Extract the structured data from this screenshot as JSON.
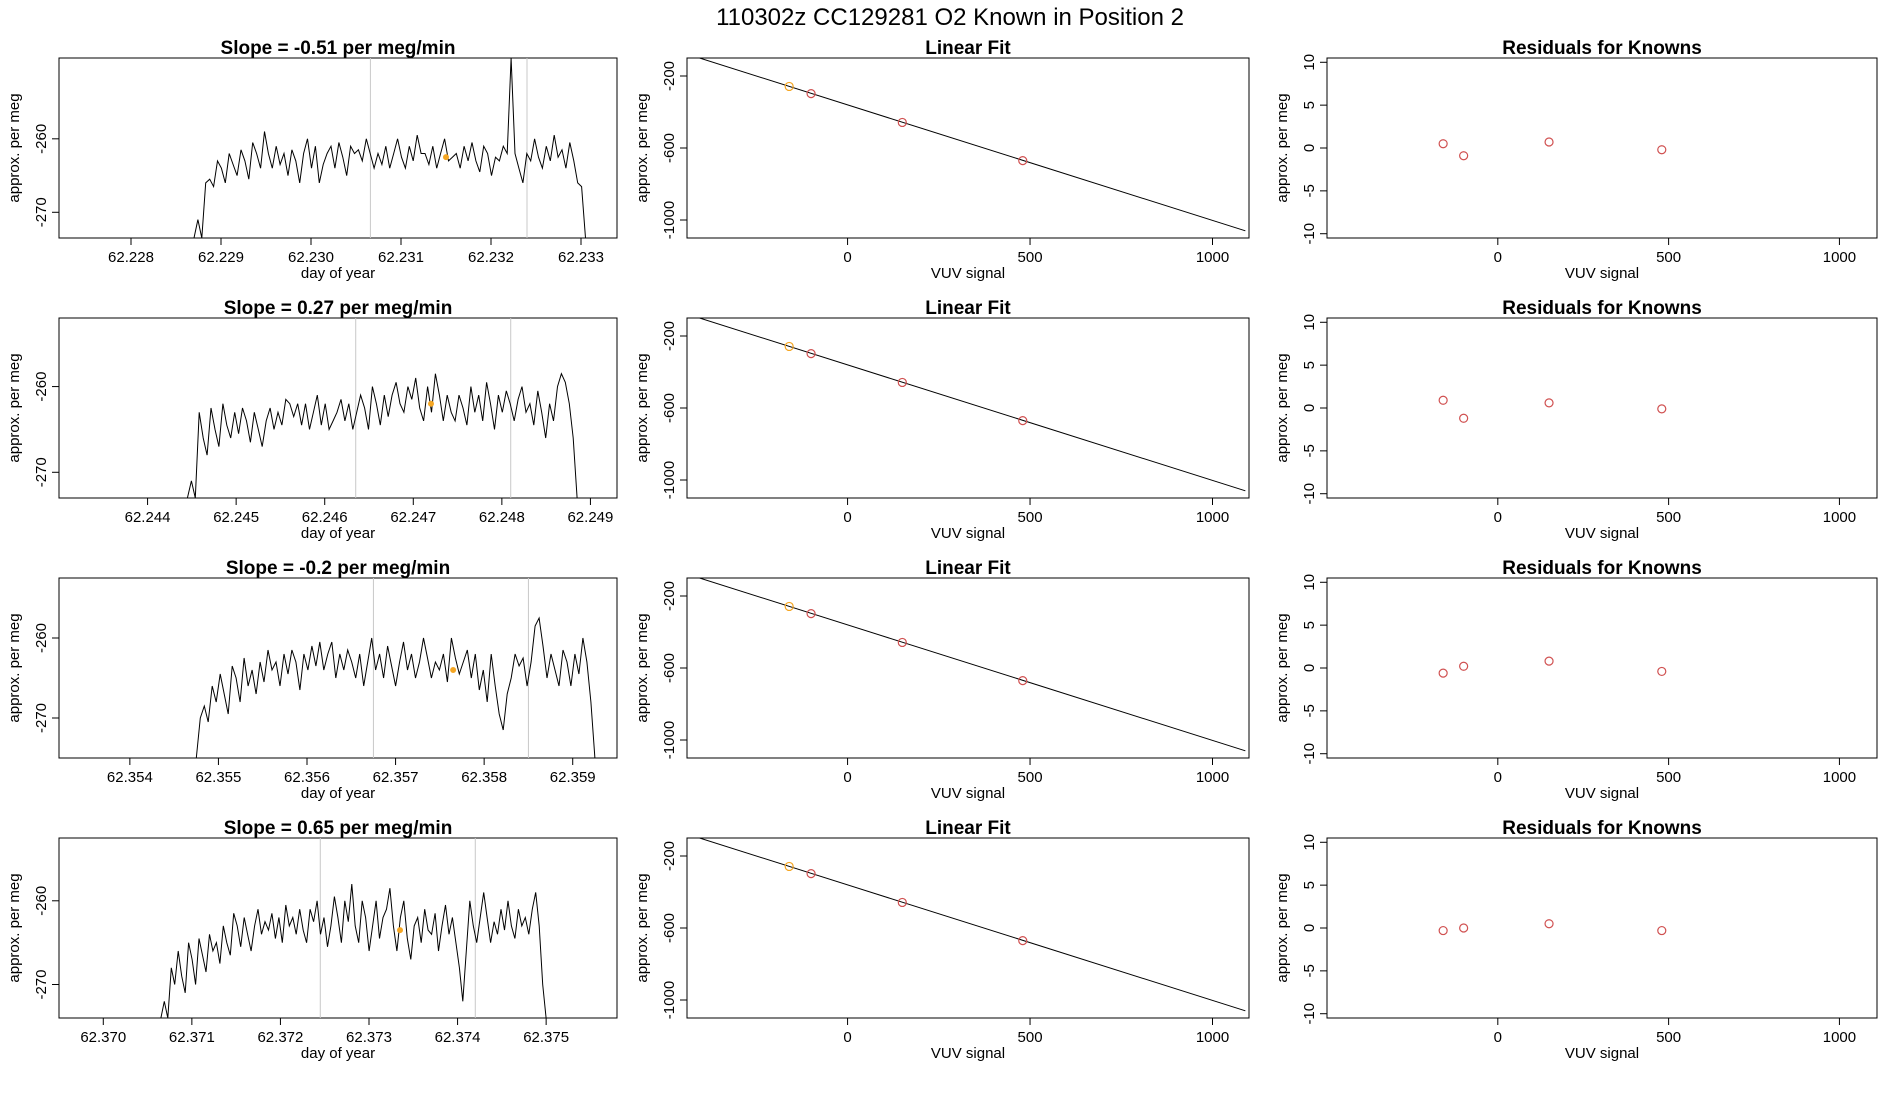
{
  "figure": {
    "title": "110302z      CC129281    O2 Known in Position  2"
  },
  "chart_data": [
    {
      "type": "line",
      "panel": "timeseries",
      "row": 1,
      "title": "Slope =  -0.51  per meg/min",
      "xlabel": "day of year",
      "ylabel": "approx. per meg",
      "xlim": [
        62.2272,
        62.2334
      ],
      "ylim": [
        -273.5,
        -249
      ],
      "xticks": [
        "62.228",
        "62.229",
        "62.230",
        "62.231",
        "62.232",
        "62.233"
      ],
      "yticks": [
        "-270",
        "-260"
      ],
      "vlines": [
        62.23066,
        62.2324
      ],
      "marker": {
        "x": 62.2315,
        "y": -262.5,
        "color": "#f5a623"
      },
      "series": [
        {
          "x_start": 62.2287,
          "x_end": 62.23305,
          "values": [
            -273.5,
            -271,
            -273.5,
            -266,
            -265.5,
            -266.5,
            -263,
            -264,
            -266,
            -262,
            -263.5,
            -265,
            -261.5,
            -263,
            -265.5,
            -260.5,
            -262,
            -264,
            -259,
            -262,
            -264,
            -261,
            -263.5,
            -262,
            -265,
            -261.5,
            -263,
            -266,
            -262,
            -260,
            -264,
            -261,
            -266,
            -263.5,
            -262,
            -261,
            -264,
            -260.5,
            -262.5,
            -265,
            -261,
            -262,
            -261.5,
            -263,
            -260,
            -262,
            -264,
            -262,
            -263.5,
            -261,
            -264,
            -262,
            -260,
            -262.5,
            -264,
            -261,
            -263,
            -259.5,
            -262,
            -262,
            -263.5,
            -261,
            -264,
            -262,
            -260,
            -263,
            -262.5,
            -262,
            -264,
            -261,
            -263,
            -260.5,
            -263,
            -264.5,
            -261,
            -262,
            -265,
            -262.5,
            -263,
            -261,
            -262,
            -249,
            -262,
            -264,
            -266,
            -262,
            -263,
            -260,
            -262.5,
            -264,
            -261,
            -263,
            -259.5,
            -262.5,
            -261.5,
            -264,
            -260.5,
            -263,
            -266,
            -266.5,
            -273.5
          ]
        }
      ]
    },
    {
      "type": "line",
      "panel": "linear-fit",
      "row": 1,
      "title": "Linear Fit",
      "xlabel": "VUV signal",
      "ylabel": "approx. per meg",
      "xlim": [
        -440,
        1100
      ],
      "ylim": [
        -1100,
        -100
      ],
      "xticks": [
        "0",
        "500",
        "1000"
      ],
      "yticks": [
        "-1000",
        "-600",
        "-200"
      ],
      "fit_line": {
        "x": [
          -440,
          1090
        ],
        "y": [
          -78,
          -1060
        ]
      },
      "points": [
        {
          "x": -160,
          "y": -258,
          "color": "#f5a623"
        },
        {
          "x": -100,
          "y": -298,
          "color": "#d05050"
        },
        {
          "x": 150,
          "y": -458,
          "color": "#d05050"
        },
        {
          "x": 480,
          "y": -670,
          "color": "#d05050"
        }
      ]
    },
    {
      "type": "scatter",
      "panel": "residuals",
      "row": 1,
      "title": "Residuals for Knowns",
      "xlabel": "VUV signal",
      "ylabel": "approx. per meg",
      "xlim": [
        -500,
        1110
      ],
      "ylim": [
        -10.5,
        10.5
      ],
      "xticks": [
        "0",
        "500",
        "1000"
      ],
      "yticks": [
        "-10",
        "-5",
        "0",
        "5",
        "10"
      ],
      "points": [
        {
          "x": -160,
          "y": 0.5
        },
        {
          "x": -100,
          "y": -0.9
        },
        {
          "x": 150,
          "y": 0.7
        },
        {
          "x": 480,
          "y": -0.2
        }
      ],
      "point_color": "#d05050"
    },
    {
      "type": "line",
      "panel": "timeseries",
      "row": 2,
      "title": "Slope =  0.27  per meg/min",
      "xlabel": "day of year",
      "ylabel": "approx. per meg",
      "xlim": [
        62.243,
        62.2493
      ],
      "ylim": [
        -273,
        -252
      ],
      "xticks": [
        "62.244",
        "62.245",
        "62.246",
        "62.247",
        "62.248",
        "62.249"
      ],
      "yticks": [
        "-270",
        "-260"
      ],
      "vlines": [
        62.24635,
        62.2481
      ],
      "marker": {
        "x": 62.2472,
        "y": -262,
        "color": "#f5a623"
      },
      "series": [
        {
          "x_start": 62.24445,
          "x_end": 62.24885,
          "values": [
            -273,
            -271,
            -273,
            -263,
            -266,
            -268,
            -262.5,
            -265,
            -267,
            -262,
            -264.5,
            -266,
            -263,
            -265.5,
            -262.5,
            -264,
            -266.5,
            -263,
            -265,
            -267,
            -264,
            -262.5,
            -265,
            -263,
            -264.5,
            -261.5,
            -262,
            -263.5,
            -262,
            -264.5,
            -262,
            -265,
            -263,
            -261,
            -264.5,
            -262,
            -265,
            -264,
            -263,
            -261.5,
            -264,
            -262,
            -265,
            -263,
            -261,
            -262.5,
            -265,
            -260,
            -262,
            -264.5,
            -261,
            -263.5,
            -261,
            -259.5,
            -262,
            -263,
            -260,
            -261.5,
            -259,
            -262.5,
            -264,
            -260,
            -263,
            -258.5,
            -261,
            -264,
            -261,
            -263,
            -264,
            -261,
            -262.5,
            -264.5,
            -260,
            -263,
            -261,
            -264,
            -259.5,
            -262,
            -265,
            -261,
            -263,
            -260.5,
            -262,
            -264,
            -261.5,
            -260,
            -263,
            -262,
            -264.5,
            -260.5,
            -263,
            -266,
            -262,
            -264,
            -260,
            -258.5,
            -259.5,
            -262,
            -266,
            -273
          ]
        }
      ]
    },
    {
      "type": "line",
      "panel": "linear-fit",
      "row": 2,
      "title": "Linear Fit",
      "xlabel": "VUV signal",
      "ylabel": "approx. per meg",
      "xlim": [
        -440,
        1100
      ],
      "ylim": [
        -1100,
        -100
      ],
      "xticks": [
        "0",
        "500",
        "1000"
      ],
      "yticks": [
        "-1000",
        "-600",
        "-200"
      ],
      "fit_line": {
        "x": [
          -440,
          1090
        ],
        "y": [
          -78,
          -1060
        ]
      },
      "points": [
        {
          "x": -160,
          "y": -258,
          "color": "#f5a623"
        },
        {
          "x": -100,
          "y": -298,
          "color": "#d05050"
        },
        {
          "x": 150,
          "y": -458,
          "color": "#d05050"
        },
        {
          "x": 480,
          "y": -670,
          "color": "#d05050"
        }
      ]
    },
    {
      "type": "scatter",
      "panel": "residuals",
      "row": 2,
      "title": "Residuals for Knowns",
      "xlabel": "VUV signal",
      "ylabel": "approx. per meg",
      "xlim": [
        -500,
        1110
      ],
      "ylim": [
        -10.5,
        10.5
      ],
      "xticks": [
        "0",
        "500",
        "1000"
      ],
      "yticks": [
        "-10",
        "-5",
        "0",
        "5",
        "10"
      ],
      "points": [
        {
          "x": -160,
          "y": 0.9
        },
        {
          "x": -100,
          "y": -1.2
        },
        {
          "x": 150,
          "y": 0.6
        },
        {
          "x": 480,
          "y": -0.1
        }
      ],
      "point_color": "#d05050"
    },
    {
      "type": "line",
      "panel": "timeseries",
      "row": 3,
      "title": "Slope =  -0.2  per meg/min",
      "xlabel": "day of year",
      "ylabel": "approx. per meg",
      "xlim": [
        62.3532,
        62.3595
      ],
      "ylim": [
        -275,
        -252.5
      ],
      "xticks": [
        "62.354",
        "62.355",
        "62.356",
        "62.357",
        "62.358",
        "62.359"
      ],
      "yticks": [
        "-270",
        "-260"
      ],
      "vlines": [
        62.35675,
        62.3585
      ],
      "marker": {
        "x": 62.35765,
        "y": -264,
        "color": "#f5a623"
      },
      "series": [
        {
          "x_start": 62.35475,
          "x_end": 62.35925,
          "values": [
            -275,
            -270,
            -268.5,
            -270.5,
            -266,
            -268,
            -264.5,
            -267,
            -269.5,
            -263.5,
            -265,
            -268,
            -262.5,
            -266,
            -264,
            -267,
            -263,
            -265.5,
            -261.5,
            -264,
            -263,
            -266,
            -262,
            -264.5,
            -261.5,
            -263,
            -266.5,
            -262,
            -264,
            -261,
            -263.5,
            -260.5,
            -264,
            -262,
            -260.5,
            -265,
            -262,
            -264,
            -261.5,
            -263,
            -265,
            -262,
            -266,
            -263,
            -260,
            -264,
            -262,
            -265,
            -261,
            -263.5,
            -266,
            -263,
            -260.5,
            -264,
            -262,
            -265,
            -263,
            -260,
            -262.5,
            -265,
            -263,
            -264,
            -262,
            -265.5,
            -260,
            -262.5,
            -264.5,
            -263,
            -261.5,
            -265,
            -262,
            -266.5,
            -264,
            -268,
            -262,
            -266,
            -269.5,
            -271.5,
            -267,
            -265,
            -262,
            -263.5,
            -262.5,
            -266,
            -263,
            -258.5,
            -257.5,
            -261,
            -265,
            -262,
            -264,
            -266,
            -261.5,
            -263,
            -266,
            -262,
            -264.5,
            -260,
            -263,
            -268,
            -275
          ]
        }
      ]
    },
    {
      "type": "line",
      "panel": "linear-fit",
      "row": 3,
      "title": "Linear Fit",
      "xlabel": "VUV signal",
      "ylabel": "approx. per meg",
      "xlim": [
        -440,
        1100
      ],
      "ylim": [
        -1100,
        -100
      ],
      "xticks": [
        "0",
        "500",
        "1000"
      ],
      "yticks": [
        "-1000",
        "-600",
        "-200"
      ],
      "fit_line": {
        "x": [
          -440,
          1090
        ],
        "y": [
          -78,
          -1060
        ]
      },
      "points": [
        {
          "x": -160,
          "y": -258,
          "color": "#f5a623"
        },
        {
          "x": -100,
          "y": -298,
          "color": "#d05050"
        },
        {
          "x": 150,
          "y": -458,
          "color": "#d05050"
        },
        {
          "x": 480,
          "y": -670,
          "color": "#d05050"
        }
      ]
    },
    {
      "type": "scatter",
      "panel": "residuals",
      "row": 3,
      "title": "Residuals for Knowns",
      "xlabel": "VUV signal",
      "ylabel": "approx. per meg",
      "xlim": [
        -500,
        1110
      ],
      "ylim": [
        -10.5,
        10.5
      ],
      "xticks": [
        "0",
        "500",
        "1000"
      ],
      "yticks": [
        "-10",
        "-5",
        "0",
        "5",
        "10"
      ],
      "points": [
        {
          "x": -160,
          "y": -0.6
        },
        {
          "x": -100,
          "y": 0.2
        },
        {
          "x": 150,
          "y": 0.8
        },
        {
          "x": 480,
          "y": -0.4
        }
      ],
      "point_color": "#d05050"
    },
    {
      "type": "line",
      "panel": "timeseries",
      "row": 4,
      "title": "Slope =  0.65  per meg/min",
      "xlabel": "day of year",
      "ylabel": "approx. per meg",
      "xlim": [
        62.3695,
        62.3758
      ],
      "ylim": [
        -274,
        -252.5
      ],
      "xticks": [
        "62.370",
        "62.371",
        "62.372",
        "62.373",
        "62.374",
        "62.375"
      ],
      "yticks": [
        "-270",
        "-260"
      ],
      "vlines": [
        62.37245,
        62.3742
      ],
      "marker": {
        "x": 62.37335,
        "y": -263.5,
        "color": "#f5a623"
      },
      "series": [
        {
          "x_start": 62.37065,
          "x_end": 62.375,
          "values": [
            -274,
            -272,
            -274,
            -268,
            -270,
            -266,
            -269,
            -271,
            -265,
            -267,
            -270,
            -264.5,
            -266.5,
            -268.5,
            -264,
            -266,
            -265,
            -267.5,
            -263,
            -265,
            -266.5,
            -261.5,
            -263,
            -265.5,
            -262,
            -264,
            -266,
            -263,
            -261,
            -264,
            -262.5,
            -263.5,
            -261.5,
            -264.5,
            -262,
            -265,
            -260.5,
            -263,
            -262,
            -264,
            -261,
            -263.5,
            -265,
            -261,
            -262.5,
            -260,
            -264,
            -262,
            -265.5,
            -263,
            -259.5,
            -262,
            -265,
            -260,
            -262.5,
            -258,
            -263,
            -265,
            -260,
            -262,
            -266,
            -263,
            -260,
            -264.5,
            -262,
            -261,
            -258.5,
            -263,
            -266,
            -262,
            -260,
            -264.5,
            -267,
            -263,
            -262,
            -265,
            -261,
            -263.5,
            -264,
            -261.5,
            -266,
            -263,
            -260.5,
            -264,
            -262,
            -265,
            -268,
            -272,
            -266,
            -260,
            -263,
            -265,
            -262,
            -259,
            -262,
            -265,
            -262.5,
            -264,
            -261,
            -263.5,
            -260,
            -263,
            -264.5,
            -261,
            -263,
            -262,
            -264,
            -261,
            -259,
            -263,
            -270,
            -274
          ]
        }
      ]
    },
    {
      "type": "line",
      "panel": "linear-fit",
      "row": 4,
      "title": "Linear Fit",
      "xlabel": "VUV signal",
      "ylabel": "approx. per meg",
      "xlim": [
        -440,
        1100
      ],
      "ylim": [
        -1100,
        -100
      ],
      "xticks": [
        "0",
        "500",
        "1000"
      ],
      "yticks": [
        "-1000",
        "-600",
        "-200"
      ],
      "fit_line": {
        "x": [
          -440,
          1090
        ],
        "y": [
          -78,
          -1060
        ]
      },
      "points": [
        {
          "x": -160,
          "y": -258,
          "color": "#f5a623"
        },
        {
          "x": -100,
          "y": -298,
          "color": "#d05050"
        },
        {
          "x": 150,
          "y": -458,
          "color": "#d05050"
        },
        {
          "x": 480,
          "y": -670,
          "color": "#d05050"
        }
      ]
    },
    {
      "type": "scatter",
      "panel": "residuals",
      "row": 4,
      "title": "Residuals for Knowns",
      "xlabel": "VUV signal",
      "ylabel": "approx. per meg",
      "xlim": [
        -500,
        1110
      ],
      "ylim": [
        -10.5,
        10.5
      ],
      "xticks": [
        "0",
        "500",
        "1000"
      ],
      "yticks": [
        "-10",
        "-5",
        "0",
        "5",
        "10"
      ],
      "points": [
        {
          "x": -160,
          "y": -0.3
        },
        {
          "x": -100,
          "y": 0.0
        },
        {
          "x": 150,
          "y": 0.5
        },
        {
          "x": 480,
          "y": -0.3
        }
      ],
      "point_color": "#d05050"
    }
  ]
}
